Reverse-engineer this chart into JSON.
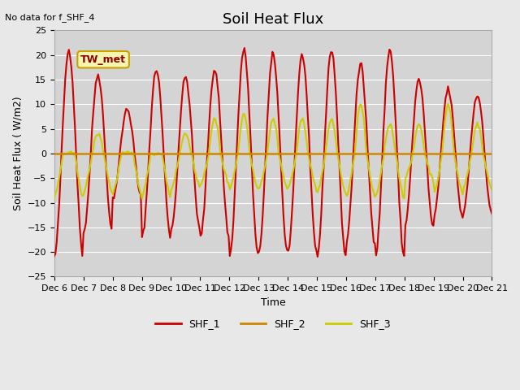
{
  "title": "Soil Heat Flux",
  "xlabel": "Time",
  "ylabel": "Soil Heat Flux ( W/m2)",
  "ylim": [
    -25,
    25
  ],
  "yticks": [
    -25,
    -20,
    -15,
    -10,
    -5,
    0,
    5,
    10,
    15,
    20,
    25
  ],
  "background_color": "#e8e8e8",
  "plot_bg_color": "#d4d4d4",
  "text_no_data": "No data for f_SHF_4",
  "annotation_box_text": "TW_met",
  "annotation_box_color": "#f5f5b0",
  "annotation_box_edge": "#c8a000",
  "annotation_text_color": "#8b0000",
  "shf1_color": "#cc0000",
  "shf2_color": "#cc8800",
  "shf3_color": "#cccc00",
  "shf1_linewidth": 1.5,
  "shf2_linewidth": 1.8,
  "shf3_linewidth": 1.5,
  "n_days": 15,
  "x_tick_labels": [
    "Dec 6",
    "Dec 7",
    "Dec 8",
    "Dec 9",
    "Dec 10",
    "Dec 11",
    "Dec 12",
    "Dec 13",
    "Dec 14",
    "Dec 15",
    "Dec 16",
    "Dec 17",
    "Dec 18",
    "Dec 19",
    "Dec 20",
    "Dec 21"
  ],
  "legend_labels": [
    "SHF_1",
    "SHF_2",
    "SHF_3"
  ],
  "title_fontsize": 13,
  "axis_label_fontsize": 9,
  "tick_fontsize": 8
}
